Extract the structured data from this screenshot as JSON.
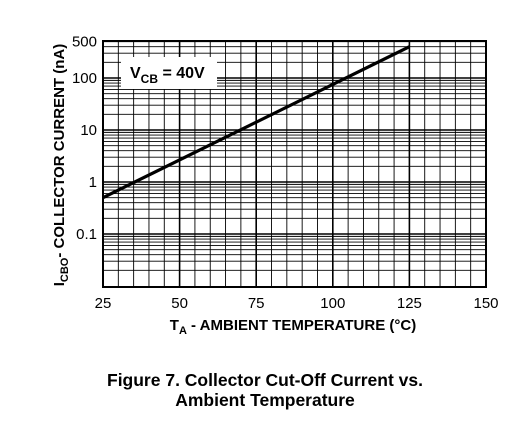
{
  "chart_data": {
    "type": "line",
    "xscale": "linear",
    "yscale": "log",
    "xlim": [
      25,
      150
    ],
    "ylim": [
      0.02,
      500
    ],
    "x_ticks": [
      25,
      50,
      75,
      100,
      125,
      150
    ],
    "y_ticks": [
      0.1,
      1,
      10,
      100,
      500
    ],
    "y_tick_labels": [
      "0.1",
      "1",
      "10",
      "100",
      "500"
    ],
    "grid": true,
    "series": [
      {
        "x": [
          25,
          125
        ],
        "y": [
          0.5,
          400
        ]
      }
    ],
    "xlabel": {
      "main": "T",
      "sub": "A",
      "rest": " - AMBIENT TEMPERATURE (°C)"
    },
    "ylabel": {
      "main": "I",
      "sub": "CBO",
      "rest": "- COLLECTOR CURRENT (nA)"
    },
    "annotation": {
      "main": "V",
      "sub": "CB",
      "rest": " = 40V"
    },
    "colors": {
      "line": "#000000",
      "grid": "#000000"
    }
  },
  "caption": {
    "line1": "Figure 7. Collector Cut-Off Current vs.",
    "line2": "Ambient Temperature"
  }
}
